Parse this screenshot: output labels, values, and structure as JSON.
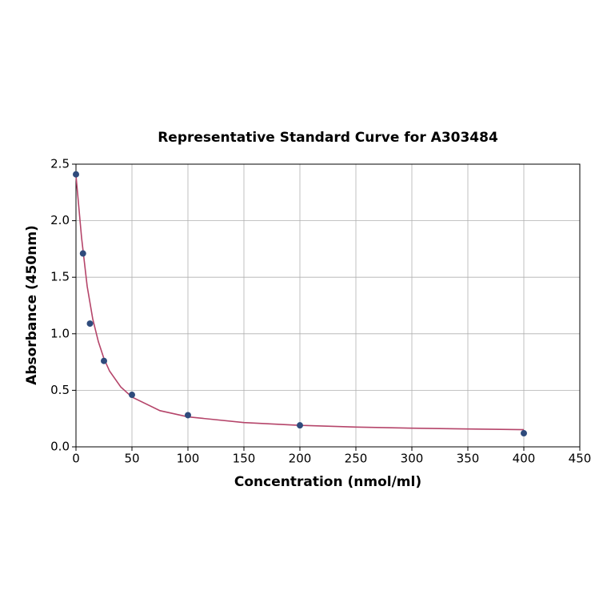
{
  "chart_data": {
    "type": "scatter",
    "title": "Representative Standard Curve for A303484",
    "x_label": "Concentration (nmol/ml)",
    "y_label": "Absorbance (450nm)",
    "xlim": [
      0,
      450
    ],
    "ylim": [
      0,
      2.5
    ],
    "xticks": [
      0,
      50,
      100,
      150,
      200,
      250,
      300,
      350,
      400,
      450
    ],
    "yticks": [
      {
        "value": 0,
        "label": "0.0"
      },
      0.5,
      {
        "value": 1,
        "label": "1.0"
      },
      1.5,
      {
        "value": 2,
        "label": "2.0"
      },
      2.5
    ],
    "grid": true,
    "series": [
      {
        "mode": "line",
        "color": "#b5456a",
        "x": [
          0,
          5,
          10,
          15,
          20,
          25,
          30,
          40,
          50,
          75,
          100,
          150,
          200,
          250,
          300,
          350,
          400
        ],
        "values": [
          2.4,
          1.85,
          1.42,
          1.13,
          0.93,
          0.78,
          0.67,
          0.53,
          0.44,
          0.32,
          0.265,
          0.215,
          0.19,
          0.175,
          0.165,
          0.158,
          0.152
        ]
      },
      {
        "mode": "markers",
        "color": "#2f4b7c",
        "x": [
          0,
          6.25,
          12.5,
          25,
          50,
          100,
          200,
          400
        ],
        "values": [
          2.41,
          1.71,
          1.09,
          0.76,
          0.46,
          0.28,
          0.19,
          0.12
        ]
      }
    ]
  }
}
